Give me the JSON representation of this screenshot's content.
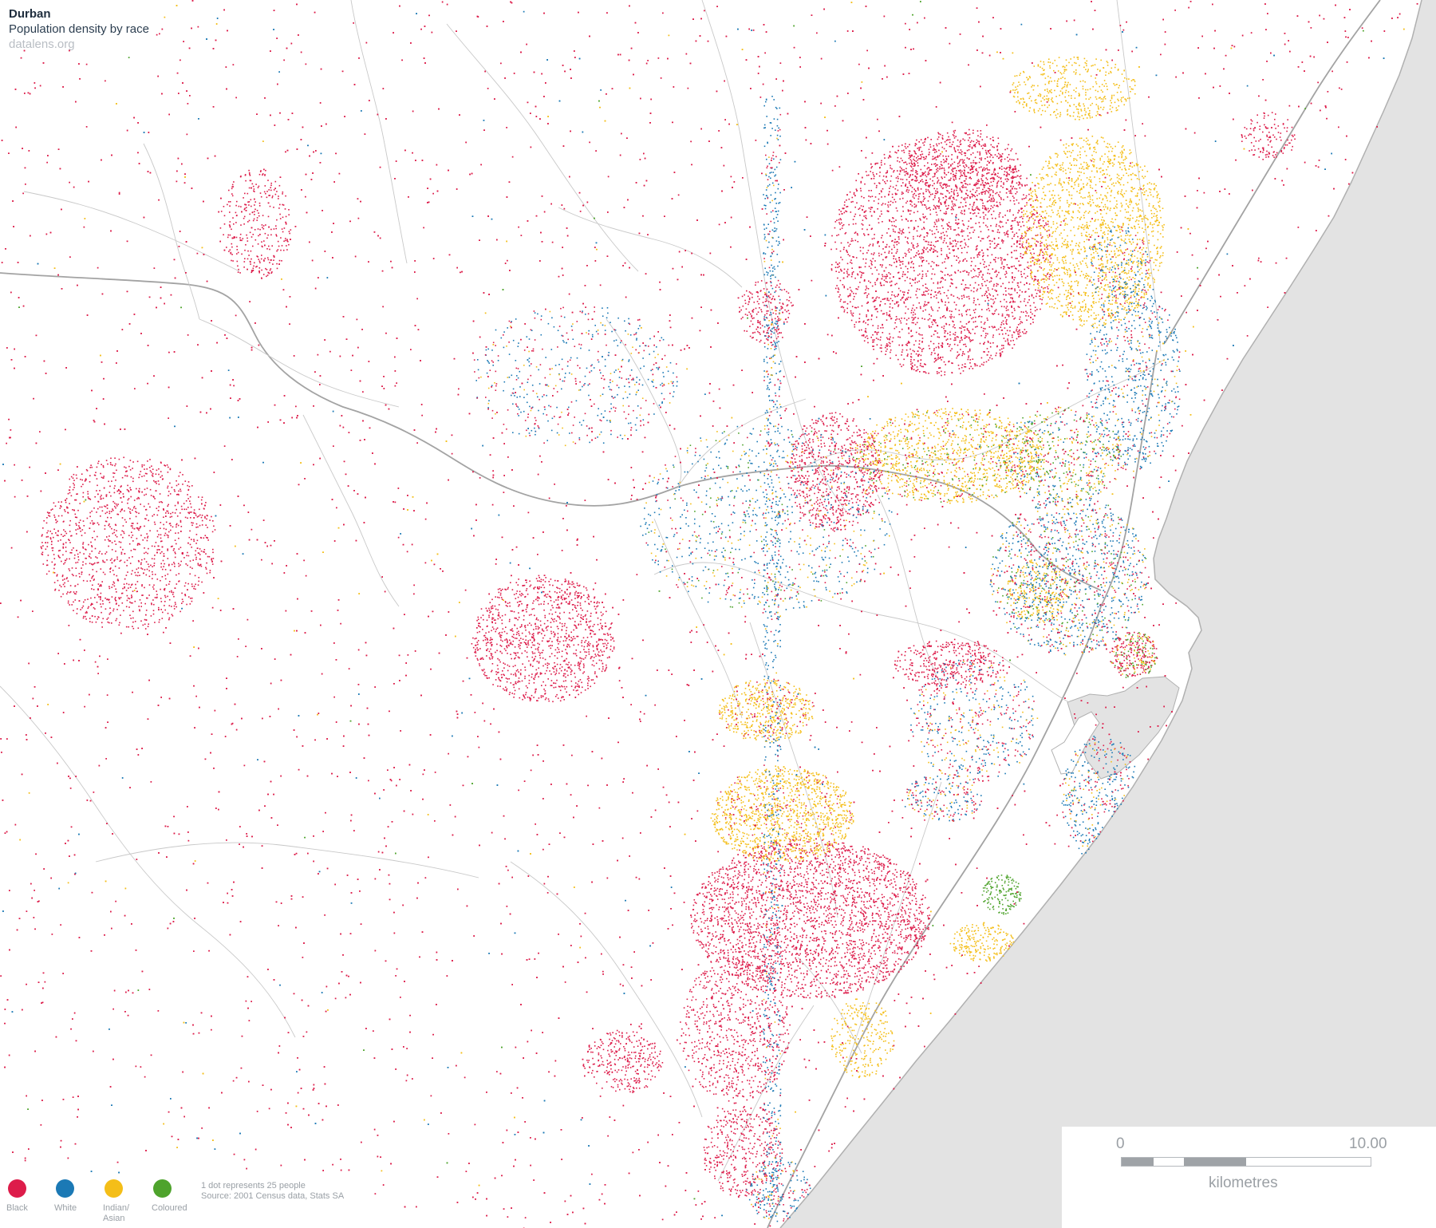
{
  "map": {
    "title": "Durban",
    "subtitle": "Population density by race",
    "site": "datalens.org",
    "colors": {
      "land": "#ffffff",
      "sea": "#e3e3e3",
      "roads": "#c8c8c8",
      "major_roads": "#a3a3a3",
      "coast": "#b0b0b0"
    },
    "dot_note": "1 dot represents 25 people",
    "source": "Source: 2001 Census data, Stats SA"
  },
  "legend": {
    "items": [
      {
        "label": "Black",
        "color": "#dd1c4a"
      },
      {
        "label": "White",
        "color": "#1b79b5"
      },
      {
        "label": "Indian/ Asian",
        "color": "#f4be18"
      },
      {
        "label": "Coloured",
        "color": "#4ea32c"
      }
    ]
  },
  "scale": {
    "min_label": "0",
    "max_label": "10.00",
    "unit": "kilometres"
  }
}
